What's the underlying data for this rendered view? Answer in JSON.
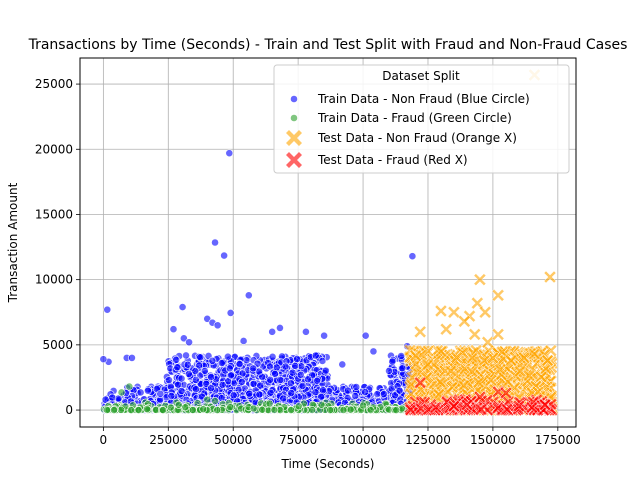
{
  "chart_data": {
    "type": "scatter",
    "title": "Transactions by Time (Seconds) - Train and Test Split with Fraud and Non-Fraud Cases",
    "xlabel": "Time (Seconds)",
    "ylabel": "Transaction Amount",
    "xlim": [
      -9000,
      182000
    ],
    "ylim": [
      -1300,
      27000
    ],
    "xticks": [
      0,
      25000,
      50000,
      75000,
      100000,
      125000,
      150000,
      175000
    ],
    "xtick_labels": [
      "0",
      "25000",
      "50000",
      "75000",
      "100000",
      "125000",
      "150000",
      "175000"
    ],
    "yticks": [
      0,
      5000,
      10000,
      15000,
      20000,
      25000
    ],
    "ytick_labels": [
      "0",
      "5000",
      "10000",
      "15000",
      "20000",
      "25000"
    ],
    "grid": true,
    "legend": {
      "title": "Dataset Split",
      "position": "top-right"
    },
    "series": [
      {
        "name": "Train Data - Non Fraud (Blue Circle)",
        "color": "#0000ff",
        "marker": "circle",
        "x_range": [
          0,
          120000
        ],
        "notable_points": [
          [
            48500,
            19700
          ],
          [
            43000,
            12850
          ],
          [
            46500,
            11850
          ],
          [
            119000,
            11800
          ],
          [
            56000,
            8800
          ],
          [
            1500,
            7700
          ],
          [
            30500,
            7900
          ],
          [
            49000,
            7450
          ],
          [
            40000,
            7000
          ],
          [
            42000,
            6700
          ],
          [
            44000,
            6500
          ],
          [
            27000,
            6200
          ],
          [
            68000,
            6300
          ],
          [
            65000,
            6000
          ],
          [
            78000,
            6000
          ],
          [
            101000,
            5700
          ],
          [
            85000,
            5700
          ],
          [
            54000,
            5300
          ],
          [
            31000,
            5500
          ],
          [
            33000,
            5200
          ],
          [
            2000,
            3700
          ],
          [
            0,
            3900
          ],
          [
            9000,
            4000
          ],
          [
            11000,
            4000
          ],
          [
            104000,
            4500
          ],
          [
            92000,
            3500
          ],
          [
            110000,
            3000
          ],
          [
            117000,
            4900
          ]
        ]
      },
      {
        "name": "Train Data - Fraud (Green Circle)",
        "color": "#2ca02c",
        "marker": "circle",
        "x_range": [
          0,
          120000
        ],
        "notable_points": [
          [
            10000,
            1800
          ],
          [
            7000,
            1350
          ],
          [
            40000,
            800
          ],
          [
            43000,
            700
          ],
          [
            29000,
            400
          ],
          [
            84000,
            400
          ],
          [
            64000,
            500
          ],
          [
            100000,
            350
          ]
        ]
      },
      {
        "name": "Test Data - Non Fraud (Orange X)",
        "color": "#ffa500",
        "marker": "x",
        "x_range": [
          118000,
          173000
        ],
        "notable_points": [
          [
            166000,
            25700
          ],
          [
            145000,
            10000
          ],
          [
            172000,
            10200
          ],
          [
            152000,
            8800
          ],
          [
            130000,
            7600
          ],
          [
            135000,
            7500
          ],
          [
            141000,
            7200
          ],
          [
            144000,
            8200
          ],
          [
            147000,
            7500
          ],
          [
            122000,
            6000
          ],
          [
            132000,
            6200
          ],
          [
            139000,
            6800
          ],
          [
            143000,
            5800
          ],
          [
            148000,
            5200
          ],
          [
            130000,
            4500
          ],
          [
            150000,
            4000
          ],
          [
            157000,
            3800
          ],
          [
            162000,
            4000
          ],
          [
            166000,
            4300
          ],
          [
            171000,
            3800
          ],
          [
            125000,
            3500
          ],
          [
            152000,
            5800
          ]
        ]
      },
      {
        "name": "Test Data - Fraud (Red X)",
        "color": "#ff0000",
        "marker": "x",
        "x_range": [
          118000,
          173000
        ],
        "notable_points": [
          [
            122000,
            2100
          ],
          [
            152000,
            1400
          ],
          [
            155000,
            1300
          ],
          [
            145000,
            1000
          ],
          [
            160000,
            300
          ],
          [
            165000,
            200
          ],
          [
            170000,
            400
          ],
          [
            135000,
            300
          ],
          [
            128000,
            200
          ],
          [
            140000,
            400
          ]
        ]
      }
    ]
  }
}
